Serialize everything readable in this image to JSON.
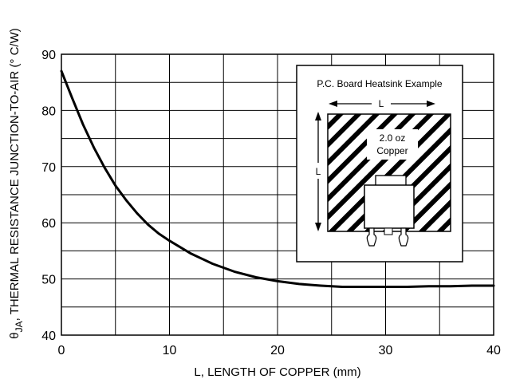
{
  "chart_data": {
    "type": "line",
    "xlabel": "L, LENGTH OF COPPER (mm)",
    "ylabel": "θJA, THERMAL RESISTANCE JUNCTION-TO-AIR (° C/W)",
    "ylabel_theta": "θ",
    "ylabel_sub": "JA",
    "ylabel_rest": ", THERMAL RESISTANCE JUNCTION-TO-AIR (° C/W)",
    "xlim": [
      0,
      40
    ],
    "ylim": [
      40,
      90
    ],
    "x_ticks": [
      "0",
      "10",
      "20",
      "30",
      "40"
    ],
    "y_ticks": [
      "40",
      "50",
      "60",
      "70",
      "80",
      "90"
    ],
    "grid": true,
    "series": [
      {
        "x": [
          0,
          1,
          2,
          3,
          4,
          5,
          6,
          7,
          8,
          9,
          10,
          12,
          14,
          16,
          18,
          20,
          22,
          24,
          26,
          28,
          30,
          32,
          34,
          36,
          38,
          40
        ],
        "y": [
          87,
          82.2,
          77.5,
          73.4,
          69.8,
          66.6,
          64,
          61.7,
          59.7,
          58.1,
          56.8,
          54.5,
          52.7,
          51.3,
          50.3,
          49.6,
          49.1,
          48.8,
          48.6,
          48.6,
          48.6,
          48.6,
          48.7,
          48.7,
          48.8,
          48.8
        ]
      }
    ],
    "inset": {
      "title": "P.C. Board Heatsink Example",
      "dim_width": "L",
      "dim_height": "L",
      "copper_line1": "2.0 oz",
      "copper_line2": "Copper"
    }
  }
}
